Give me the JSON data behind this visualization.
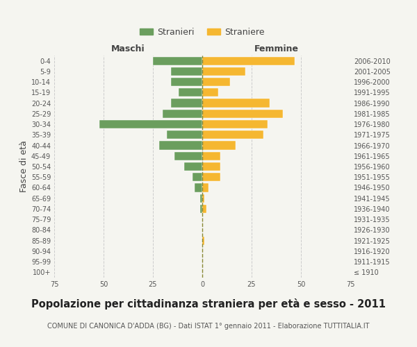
{
  "age_groups": [
    "100+",
    "95-99",
    "90-94",
    "85-89",
    "80-84",
    "75-79",
    "70-74",
    "65-69",
    "60-64",
    "55-59",
    "50-54",
    "45-49",
    "40-44",
    "35-39",
    "30-34",
    "25-29",
    "20-24",
    "15-19",
    "10-14",
    "5-9",
    "0-4"
  ],
  "birth_years": [
    "≤ 1910",
    "1911-1915",
    "1916-1920",
    "1921-1925",
    "1926-1930",
    "1931-1935",
    "1936-1940",
    "1941-1945",
    "1946-1950",
    "1951-1955",
    "1956-1960",
    "1961-1965",
    "1966-1970",
    "1971-1975",
    "1976-1980",
    "1981-1985",
    "1986-1990",
    "1991-1995",
    "1996-2000",
    "2001-2005",
    "2006-2010"
  ],
  "males": [
    0,
    0,
    0,
    0,
    0,
    0,
    1,
    1,
    4,
    5,
    9,
    14,
    22,
    18,
    52,
    20,
    16,
    12,
    16,
    16,
    25
  ],
  "females": [
    0,
    0,
    0,
    1,
    0,
    0,
    2,
    1,
    3,
    9,
    9,
    9,
    17,
    31,
    33,
    41,
    34,
    8,
    14,
    22,
    47
  ],
  "male_color": "#6b9e5e",
  "female_color": "#f5b731",
  "center_line_color": "#888833",
  "background_color": "#f5f5f0",
  "grid_color": "#cccccc",
  "title": "Popolazione per cittadinanza straniera per età e sesso - 2011",
  "subtitle": "COMUNE DI CANONICA D'ADDA (BG) - Dati ISTAT 1° gennaio 2011 - Elaborazione TUTTITALIA.IT",
  "left_label": "Maschi",
  "right_label": "Femmine",
  "ylabel_left": "Fasce di età",
  "legend_male": "Stranieri",
  "legend_female": "Straniere",
  "xlim": 75,
  "title_fontsize": 10.5,
  "subtitle_fontsize": 7,
  "tick_fontsize": 7,
  "label_fontsize": 9
}
